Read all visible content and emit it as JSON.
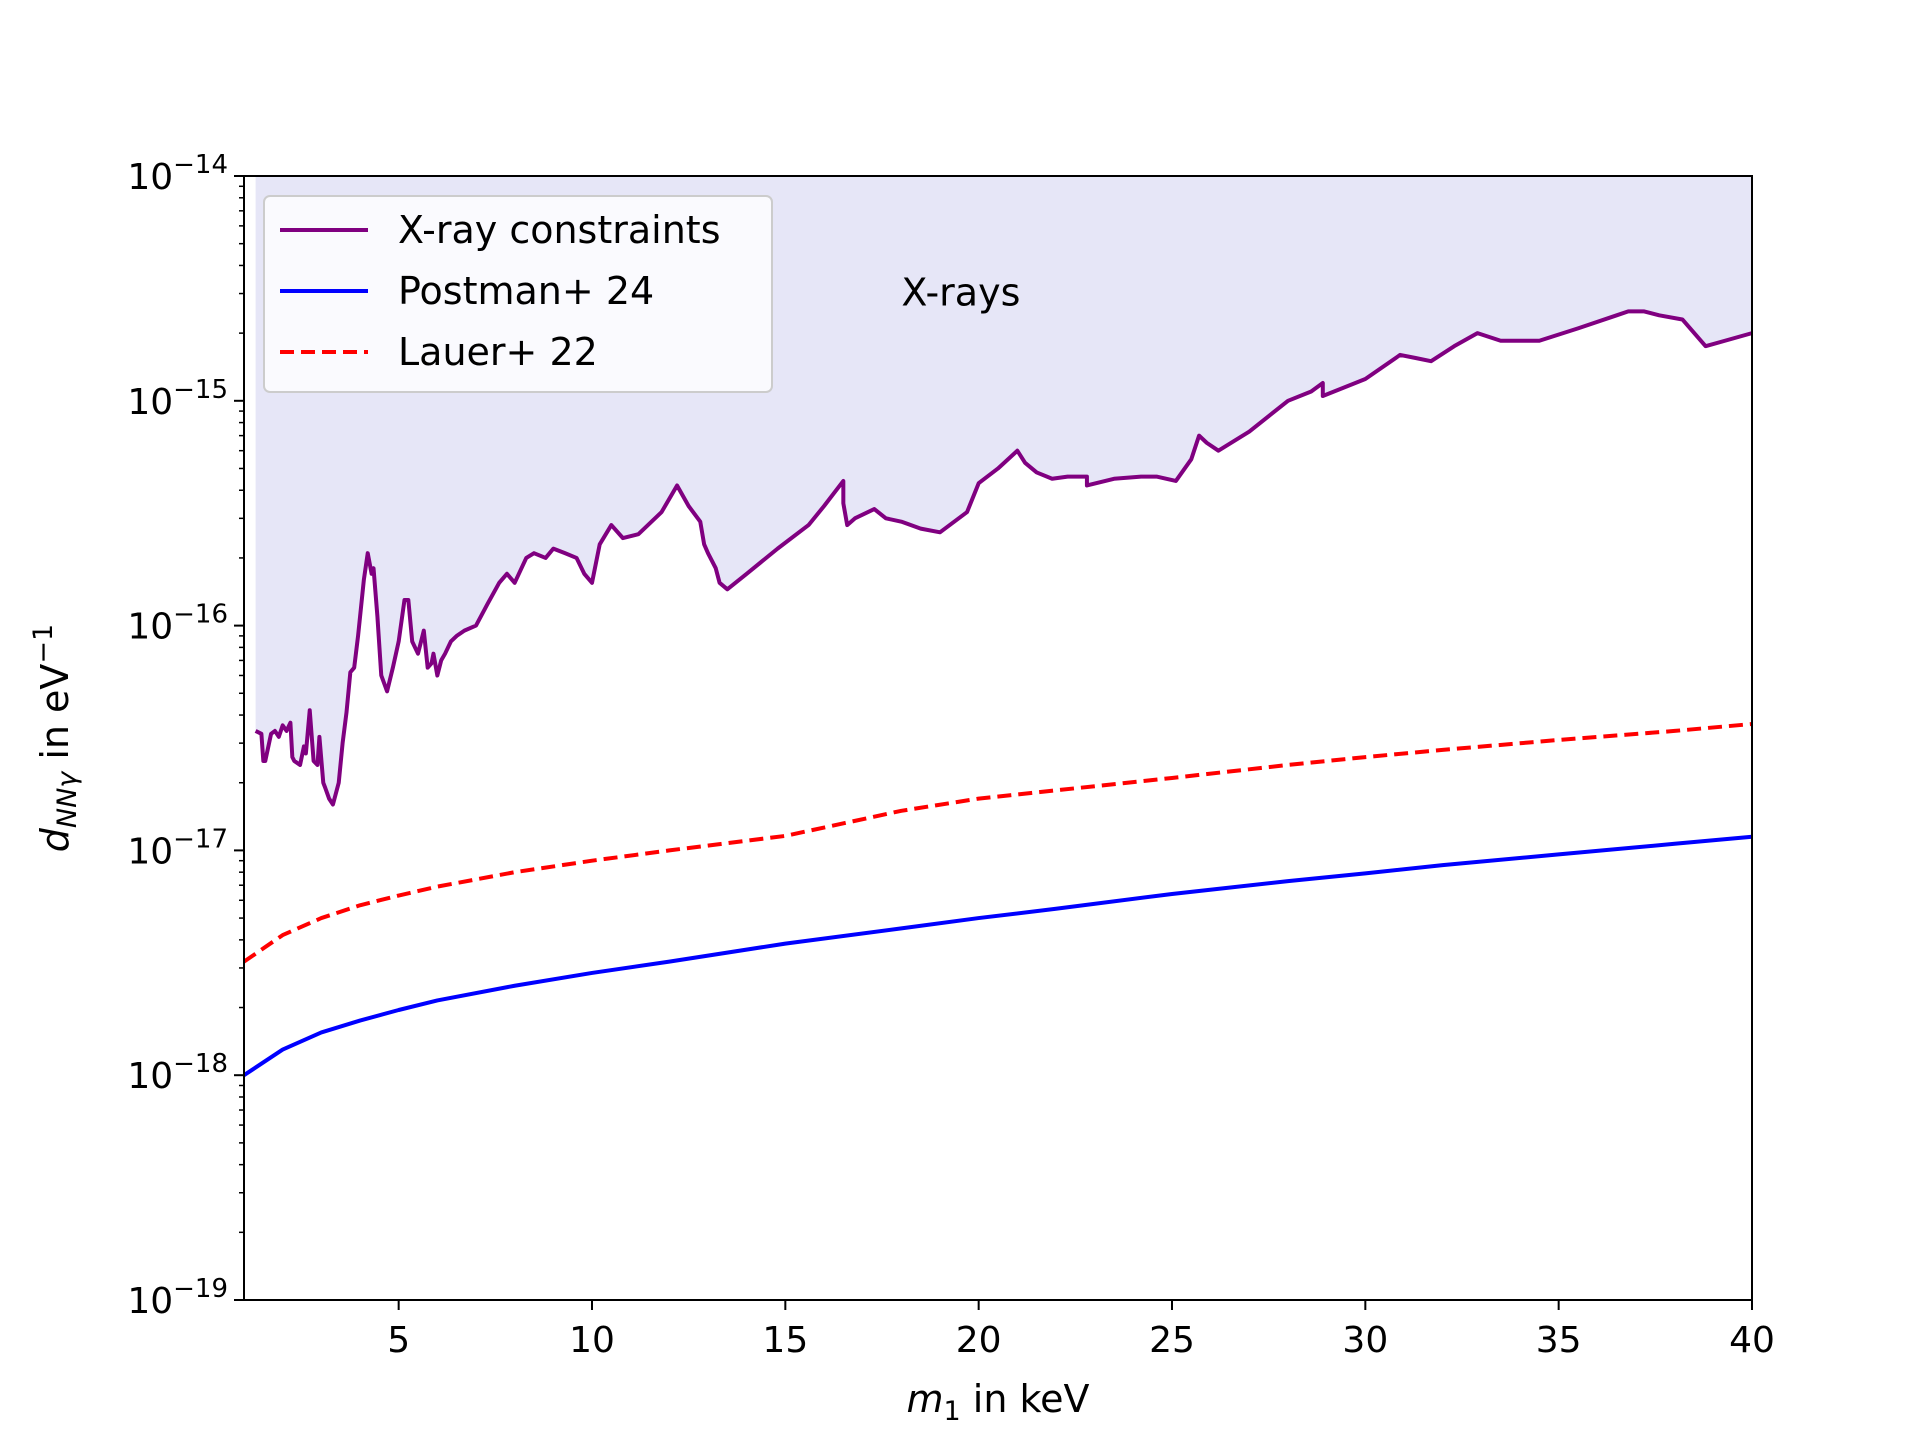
{
  "chart_data": {
    "type": "line",
    "title": "",
    "xlabel": {
      "var": "m",
      "sub": "1",
      "rest": " in keV"
    },
    "ylabel": {
      "var": "d",
      "sub": "NNγ",
      "rest": " in eV",
      "sup": "−1"
    },
    "xlim": [
      1,
      40
    ],
    "ylim": [
      1e-19,
      1e-14
    ],
    "yscale": "log",
    "grid": false,
    "legend_position": "upper left",
    "x_ticks": [
      5,
      10,
      15,
      20,
      25,
      30,
      35,
      40
    ],
    "y_ticks": [
      {
        "base": "10",
        "exp": "−14",
        "value": 1e-14
      },
      {
        "base": "10",
        "exp": "−15",
        "value": 1e-15
      },
      {
        "base": "10",
        "exp": "−16",
        "value": 1e-16
      },
      {
        "base": "10",
        "exp": "−17",
        "value": 1e-17
      },
      {
        "base": "10",
        "exp": "−18",
        "value": 1e-18
      },
      {
        "base": "10",
        "exp": "−19",
        "value": 1e-19
      }
    ],
    "region_label": {
      "text": "X-rays",
      "x": 18,
      "y": 3e-15,
      "fill_color": "#e6e6f7"
    },
    "series": [
      {
        "name": "X-ray constraints",
        "color": "#800080",
        "dash": "solid",
        "fill_above": true,
        "x": [
          1.3,
          1.45,
          1.5,
          1.55,
          1.7,
          1.8,
          1.9,
          2.0,
          2.1,
          2.2,
          2.25,
          2.3,
          2.45,
          2.55,
          2.6,
          2.7,
          2.8,
          2.9,
          2.95,
          3.05,
          3.1,
          3.2,
          3.3,
          3.45,
          3.55,
          3.65,
          3.75,
          3.85,
          3.95,
          4.1,
          4.2,
          4.3,
          4.35,
          4.45,
          4.55,
          4.7,
          4.85,
          5.0,
          5.15,
          5.25,
          5.35,
          5.5,
          5.65,
          5.75,
          5.85,
          5.9,
          6.0,
          6.1,
          6.2,
          6.35,
          6.5,
          6.7,
          7.0,
          7.3,
          7.6,
          7.8,
          8.0,
          8.3,
          8.5,
          8.8,
          9.0,
          9.3,
          9.6,
          9.8,
          10.0,
          10.2,
          10.5,
          10.8,
          11.2,
          11.8,
          12.2,
          12.5,
          12.8,
          12.9,
          13.0,
          13.2,
          13.3,
          13.5,
          14.0,
          14.8,
          15.6,
          16.0,
          16.5,
          16.5,
          16.6,
          16.8,
          17.3,
          17.6,
          18.0,
          18.5,
          19.0,
          19.7,
          20.0,
          20.5,
          21.0,
          21.2,
          21.5,
          21.9,
          22.3,
          22.8,
          22.8,
          23.5,
          24.2,
          24.6,
          25.1,
          25.5,
          25.7,
          25.9,
          26.2,
          27.0,
          28.0,
          28.6,
          28.9,
          28.9,
          30.0,
          30.9,
          31.3,
          31.7,
          32.3,
          32.9,
          33.5,
          34.5,
          35.5,
          36.5,
          36.8,
          37.2,
          37.6,
          38.2,
          38.8,
          39.3,
          40.0
        ],
        "y": [
          3.4e-17,
          3.3e-17,
          2.5e-17,
          2.5e-17,
          3.3e-17,
          3.4e-17,
          3.2e-17,
          3.6e-17,
          3.4e-17,
          3.7e-17,
          2.6e-17,
          2.5e-17,
          2.4e-17,
          2.9e-17,
          2.7e-17,
          4.2e-17,
          2.5e-17,
          2.4e-17,
          3.2e-17,
          2e-17,
          1.9e-17,
          1.7e-17,
          1.6e-17,
          2e-17,
          3e-17,
          4.1e-17,
          6.2e-17,
          6.5e-17,
          9e-17,
          1.6e-16,
          2.1e-16,
          1.7e-16,
          1.8e-16,
          1.1e-16,
          6e-17,
          5.1e-17,
          6.5e-17,
          8.5e-17,
          1.3e-16,
          1.3e-16,
          8.5e-17,
          7.5e-17,
          9.5e-17,
          6.5e-17,
          6.8e-17,
          7.5e-17,
          6e-17,
          7e-17,
          7.5e-17,
          8.5e-17,
          9e-17,
          9.5e-17,
          1e-16,
          1.25e-16,
          1.55e-16,
          1.7e-16,
          1.55e-16,
          2e-16,
          2.1e-16,
          2e-16,
          2.2e-16,
          2.1e-16,
          2e-16,
          1.7e-16,
          1.55e-16,
          2.3e-16,
          2.8e-16,
          2.45e-16,
          2.55e-16,
          3.2e-16,
          4.2e-16,
          3.4e-16,
          2.9e-16,
          2.3e-16,
          2.1e-16,
          1.8e-16,
          1.55e-16,
          1.45e-16,
          1.7e-16,
          2.2e-16,
          2.8e-16,
          3.4e-16,
          4.4e-16,
          3.5e-16,
          2.8e-16,
          3e-16,
          3.3e-16,
          3e-16,
          2.9e-16,
          2.7e-16,
          2.6e-16,
          3.2e-16,
          4.3e-16,
          5e-16,
          6e-16,
          5.3e-16,
          4.8e-16,
          4.5e-16,
          4.6e-16,
          4.6e-16,
          4.2e-16,
          4.5e-16,
          4.6e-16,
          4.6e-16,
          4.4e-16,
          5.5e-16,
          7e-16,
          6.5e-16,
          6e-16,
          7.3e-16,
          1e-15,
          1.1e-15,
          1.2e-15,
          1.05e-15,
          1.25e-15,
          1.6e-15,
          1.55e-15,
          1.5e-15,
          1.75e-15,
          2e-15,
          1.85e-15,
          1.85e-15,
          2.1e-15,
          2.4e-15,
          2.5e-15,
          2.5e-15,
          2.4e-15,
          2.3e-15,
          1.75e-15,
          1.85e-15,
          2e-15
        ]
      },
      {
        "name": "Postman+ 24",
        "color": "#0000ff",
        "dash": "solid",
        "fill_above": false,
        "x": [
          1,
          2,
          3,
          4,
          5,
          6,
          8,
          10,
          12,
          15,
          18,
          20,
          22,
          25,
          28,
          30,
          32,
          35,
          38,
          40
        ],
        "y": [
          1e-18,
          1.3e-18,
          1.55e-18,
          1.75e-18,
          1.95e-18,
          2.15e-18,
          2.5e-18,
          2.85e-18,
          3.2e-18,
          3.85e-18,
          4.5e-18,
          5e-18,
          5.5e-18,
          6.4e-18,
          7.3e-18,
          7.9e-18,
          8.6e-18,
          9.6e-18,
          1.07e-17,
          1.15e-17
        ]
      },
      {
        "name": "Lauer+ 22",
        "color": "#ff0000",
        "dash": "dashed",
        "fill_above": false,
        "x": [
          1,
          2,
          3,
          4,
          5,
          6,
          8,
          10,
          12,
          15,
          18,
          20,
          22,
          25,
          28,
          30,
          32,
          35,
          38,
          40
        ],
        "y": [
          3.2e-18,
          4.2e-18,
          5e-18,
          5.7e-18,
          6.3e-18,
          6.9e-18,
          8e-18,
          9e-18,
          1e-17,
          1.16e-17,
          1.5e-17,
          1.7e-17,
          1.85e-17,
          2.1e-17,
          2.4e-17,
          2.6e-17,
          2.8e-17,
          3.1e-17,
          3.4e-17,
          3.65e-17
        ]
      }
    ]
  }
}
